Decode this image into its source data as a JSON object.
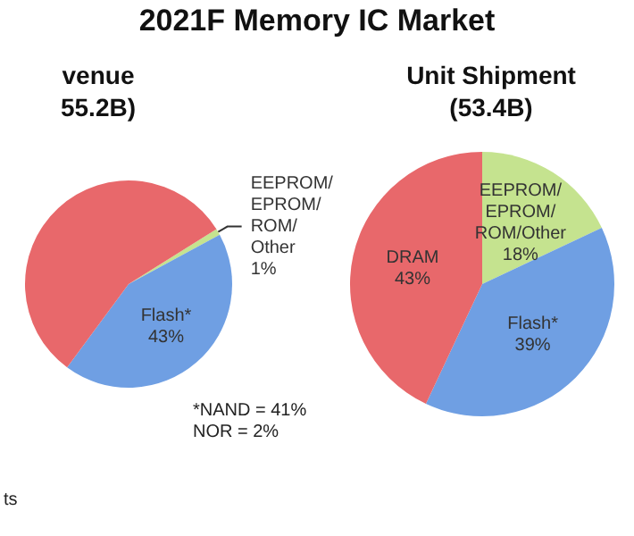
{
  "chart_data": [
    {
      "type": "pie",
      "title": "2021F Memory IC Market",
      "subtitle": "venue\n55.2B)",
      "categories": [
        "EEPROM/\nEPROM/\nROM/\nOther",
        "Flash*",
        null
      ],
      "values": [
        1,
        43,
        56
      ],
      "colors": [
        "#c5e38f",
        "#6f9fe3",
        "#e8686b"
      ],
      "value_labels": [
        "1%",
        "43%",
        null
      ],
      "annotations": [
        "*NAND = 41%\nNOR = 2%",
        "ts"
      ]
    },
    {
      "type": "pie",
      "title": "Unit Shipment\n(53.4B)",
      "categories": [
        "EEPROM/\nEPROM/\nROM/Other",
        "Flash*",
        "DRAM"
      ],
      "values": [
        18,
        39,
        43
      ],
      "colors": [
        "#c5e38f",
        "#6f9fe3",
        "#e8686b"
      ],
      "value_labels": [
        "18%",
        "39%",
        "43%"
      ]
    }
  ]
}
